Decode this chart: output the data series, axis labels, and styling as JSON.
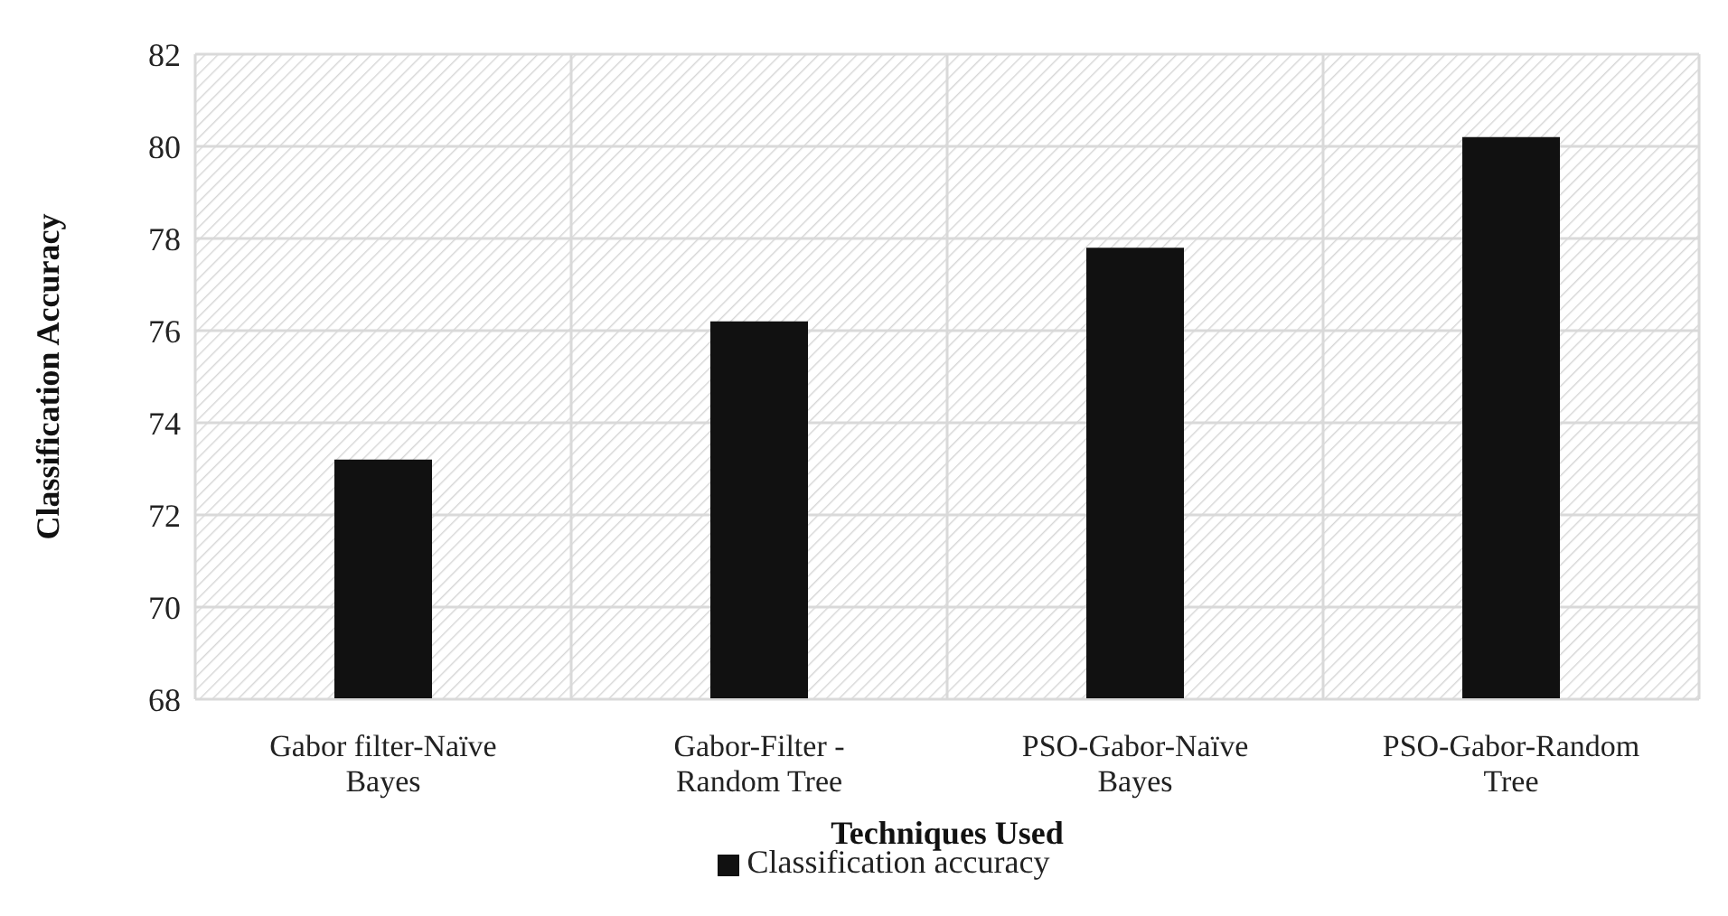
{
  "chart_data": {
    "type": "bar",
    "xlabel": "Techniques Used",
    "ylabel": "Classification Accuracy",
    "categories": [
      "Gabor filter-Naïve Bayes",
      "Gabor-Filter - Random Tree",
      "PSO-Gabor-Naïve Bayes",
      "PSO-Gabor-Random Tree"
    ],
    "series": [
      {
        "name": "Classification accuracy",
        "color": "#111111",
        "values": [
          73.2,
          76.2,
          77.8,
          80.2
        ]
      }
    ],
    "ylim": [
      68,
      82
    ],
    "yticks": [
      68,
      70,
      72,
      74,
      76,
      78,
      80,
      82
    ],
    "grid": true,
    "legend": "bottom"
  }
}
